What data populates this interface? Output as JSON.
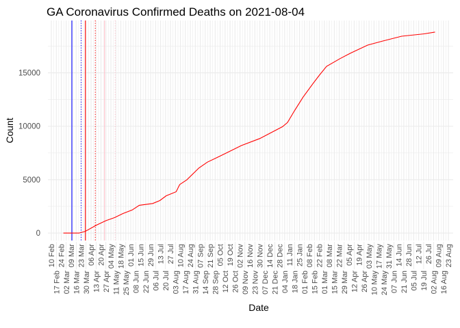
{
  "chart_data": {
    "type": "line",
    "title": "GA Coronavirus Confirmed Deaths on 2021-08-04",
    "xlabel": "Date",
    "ylabel": "Count",
    "x_start": "2020-02-10",
    "x_end": "2021-08-23",
    "ylim": [
      -700,
      19900
    ],
    "yticks": [
      0,
      5000,
      10000,
      15000
    ],
    "ytick_labels": [
      "0",
      "5000",
      "10000",
      "15000"
    ],
    "grid": true,
    "xtick_labels": [
      "10 Feb",
      "17 Feb",
      "24 Feb",
      "02 Mar",
      "09 Mar",
      "16 Mar",
      "23 Mar",
      "30 Mar",
      "06 Apr",
      "13 Apr",
      "20 Apr",
      "27 Apr",
      "04 May",
      "11 May",
      "18 May",
      "25 May",
      "01 Jun",
      "08 Jun",
      "15 Jun",
      "22 Jun",
      "29 Jun",
      "06 Jul",
      "13 Jul",
      "20 Jul",
      "27 Jul",
      "03 Aug",
      "10 Aug",
      "17 Aug",
      "24 Aug",
      "31 Aug",
      "07 Sep",
      "14 Sep",
      "21 Sep",
      "28 Sep",
      "05 Oct",
      "12 Oct",
      "19 Oct",
      "26 Oct",
      "02 Nov",
      "09 Nov",
      "16 Nov",
      "23 Nov",
      "30 Nov",
      "07 Dec",
      "14 Dec",
      "21 Dec",
      "28 Dec",
      "04 Jan",
      "11 Jan",
      "18 Jan",
      "25 Jan",
      "01 Feb",
      "08 Feb",
      "15 Feb",
      "22 Feb",
      "01 Mar",
      "08 Mar",
      "15 Mar",
      "22 Mar",
      "29 Mar",
      "05 Apr",
      "12 Apr",
      "19 Apr",
      "26 Apr",
      "03 May",
      "10 May",
      "17 May",
      "24 May",
      "31 May",
      "07 Jun",
      "14 Jun",
      "21 Jun",
      "28 Jun",
      "05 Jul",
      "12 Jul",
      "19 Jul",
      "26 Jul",
      "02 Aug",
      "09 Aug",
      "16 Aug",
      "23 Aug"
    ],
    "series": [
      {
        "name": "Confirmed Deaths",
        "color": "#ff0000",
        "points": [
          [
            "2020-02-27",
            0
          ],
          [
            "2020-03-20",
            0
          ],
          [
            "2020-03-29",
            166
          ],
          [
            "2020-04-13",
            720
          ],
          [
            "2020-04-27",
            1160
          ],
          [
            "2020-05-09",
            1440
          ],
          [
            "2020-05-21",
            1830
          ],
          [
            "2020-06-03",
            2160
          ],
          [
            "2020-06-13",
            2600
          ],
          [
            "2020-07-02",
            2770
          ],
          [
            "2020-07-12",
            3040
          ],
          [
            "2020-07-21",
            3490
          ],
          [
            "2020-08-04",
            3870
          ],
          [
            "2020-08-09",
            4540
          ],
          [
            "2020-08-19",
            4980
          ],
          [
            "2020-09-05",
            6090
          ],
          [
            "2020-09-17",
            6640
          ],
          [
            "2020-10-01",
            7080
          ],
          [
            "2020-10-13",
            7470
          ],
          [
            "2020-11-04",
            8190
          ],
          [
            "2020-11-30",
            8850
          ],
          [
            "2021-01-01",
            9960
          ],
          [
            "2021-01-08",
            10350
          ],
          [
            "2021-01-18",
            11460
          ],
          [
            "2021-01-30",
            12730
          ],
          [
            "2021-02-13",
            14000
          ],
          [
            "2021-02-22",
            14780
          ],
          [
            "2021-03-04",
            15600
          ],
          [
            "2021-03-23",
            16330
          ],
          [
            "2021-04-08",
            16880
          ],
          [
            "2021-05-01",
            17600
          ],
          [
            "2021-05-23",
            17990
          ],
          [
            "2021-06-18",
            18430
          ],
          [
            "2021-07-20",
            18650
          ],
          [
            "2021-08-04",
            18820
          ]
        ]
      }
    ],
    "vlines": [
      {
        "date": "2020-03-10",
        "color": "#0000ff",
        "style": "solid"
      },
      {
        "date": "2020-03-23",
        "color": "#0000ff",
        "style": "dotted"
      },
      {
        "date": "2020-03-29",
        "color": "#ff0000",
        "style": "solid"
      },
      {
        "date": "2020-04-12",
        "color": "#ff0000",
        "style": "dotted"
      },
      {
        "date": "2020-04-25",
        "color": "#ffc0cb",
        "style": "solid"
      },
      {
        "date": "2020-05-10",
        "color": "#ffc0cb",
        "style": "dotted"
      }
    ]
  }
}
